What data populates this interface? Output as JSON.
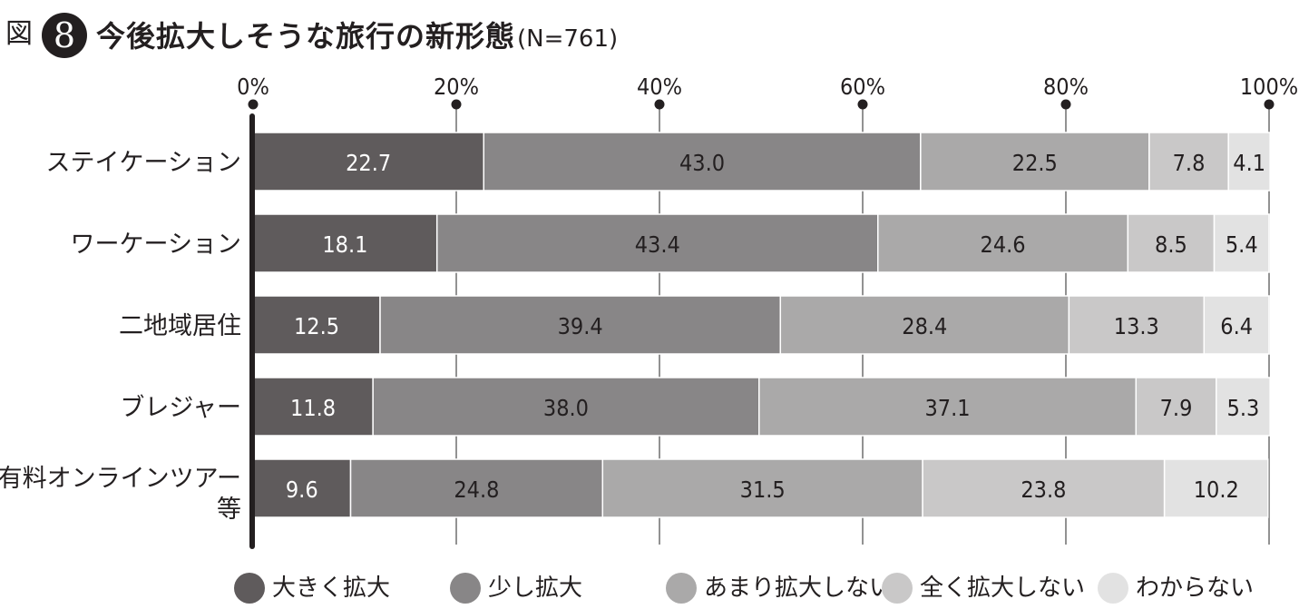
{
  "figure": {
    "prefix": "図",
    "number": "8",
    "title": "今後拡大しそうな旅行の新形態",
    "note": "(N=761)"
  },
  "chart_data": {
    "type": "bar",
    "orientation": "horizontal",
    "stacked": true,
    "title": "今後拡大しそうな旅行の新形態",
    "xlim": [
      0,
      100
    ],
    "x_ticks": [
      "0%",
      "20%",
      "40%",
      "60%",
      "80%",
      "100%"
    ],
    "categories": [
      "ステイケーション",
      "ワーケーション",
      "二地域居住",
      "ブレジャー",
      "有料オンラインツアー等"
    ],
    "series": [
      {
        "name": "大きく拡大",
        "color": "#5f5b5c",
        "values": [
          22.7,
          18.1,
          12.5,
          11.8,
          9.6
        ]
      },
      {
        "name": "少し拡大",
        "color": "#888687",
        "values": [
          43.0,
          43.4,
          39.4,
          38.0,
          24.8
        ]
      },
      {
        "name": "あまり拡大しない",
        "color": "#aaa9a9",
        "values": [
          22.5,
          24.6,
          28.4,
          37.1,
          31.5
        ]
      },
      {
        "name": "全く拡大しない",
        "color": "#c9c8c8",
        "values": [
          7.8,
          8.5,
          13.3,
          7.9,
          23.8
        ]
      },
      {
        "name": "わからない",
        "color": "#e2e2e2",
        "values": [
          4.1,
          5.4,
          6.4,
          5.3,
          10.2
        ]
      }
    ],
    "grid": true,
    "legend_position": "bottom"
  }
}
